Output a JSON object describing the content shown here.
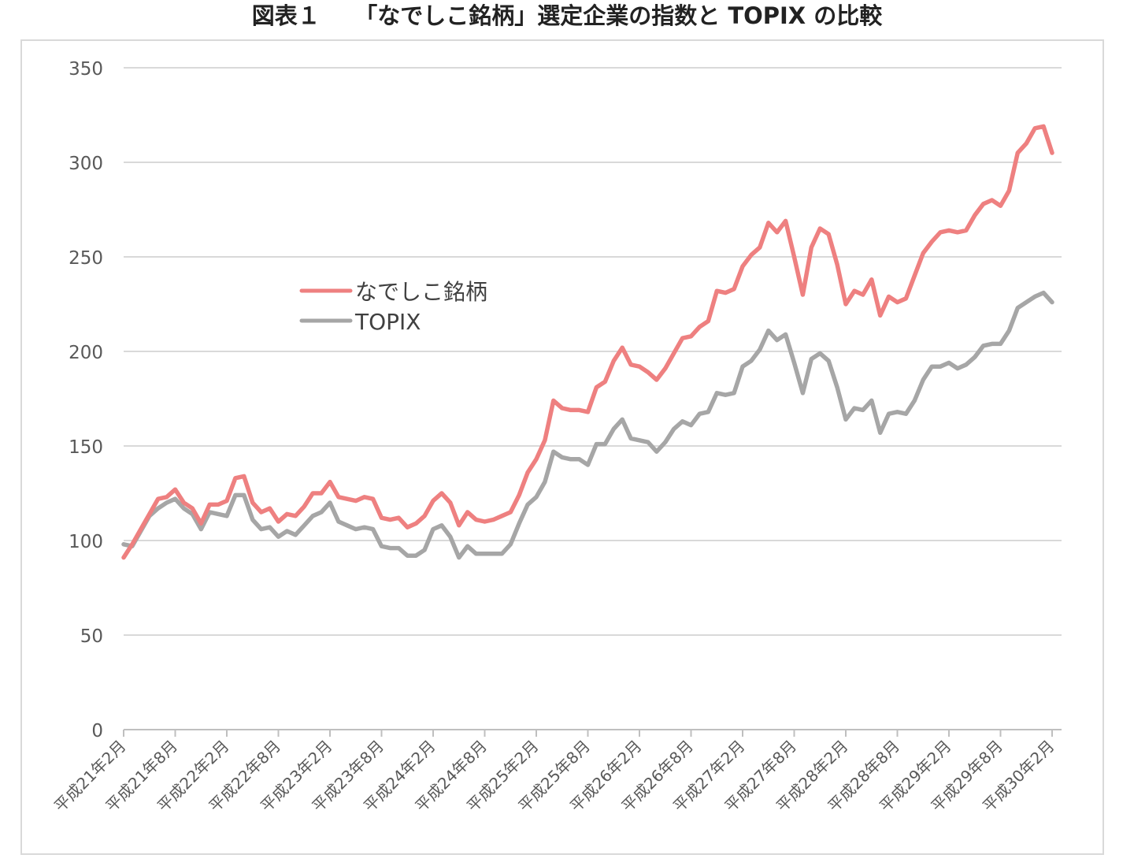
{
  "title": "図表１　　「なでしこ銘柄」選定企業の指数と TOPIX の比較",
  "colors": {
    "nadeshiko": "#ee8080",
    "topix": "#a6a6a6",
    "grid": "#d9d9d9",
    "axis": "#bfbfbf"
  },
  "chart_data": {
    "type": "line",
    "title": "図表１　　「なでしこ銘柄」選定企業の指数と TOPIX の比較",
    "xlabel": "",
    "ylabel": "",
    "ylim": [
      0,
      350
    ],
    "yticks": [
      0,
      50,
      100,
      150,
      200,
      250,
      300,
      350
    ],
    "grid": true,
    "legend_position": "upper-left-center",
    "x_tick_labels": [
      "平成21年2月",
      "平成21年8月",
      "平成22年2月",
      "平成22年8月",
      "平成23年2月",
      "平成23年8月",
      "平成24年2月",
      "平成24年8月",
      "平成25年2月",
      "平成25年8月",
      "平成26年2月",
      "平成26年8月",
      "平成27年2月",
      "平成27年8月",
      "平成28年2月",
      "平成28年8月",
      "平成29年2月",
      "平成29年8月",
      "平成30年2月"
    ],
    "x_start": "平成21年2月",
    "x_interval": "monthly",
    "series": [
      {
        "name": "なでしこ銘柄",
        "color": "#ee8080",
        "values": [
          91,
          98,
          106,
          114,
          122,
          123,
          127,
          120,
          117,
          109,
          119,
          119,
          121,
          133,
          134,
          120,
          115,
          117,
          110,
          114,
          113,
          118,
          125,
          125,
          131,
          123,
          122,
          121,
          123,
          122,
          112,
          111,
          112,
          107,
          109,
          113,
          121,
          125,
          120,
          108,
          115,
          111,
          110,
          111,
          113,
          115,
          124,
          136,
          143,
          153,
          174,
          170,
          169,
          169,
          168,
          181,
          184,
          195,
          202,
          193,
          192,
          189,
          185,
          191,
          199,
          207,
          208,
          213,
          216,
          232,
          231,
          233,
          245,
          251,
          255,
          268,
          263,
          269,
          250,
          230,
          255,
          265,
          262,
          246,
          225,
          232,
          230,
          238,
          219,
          229,
          226,
          228,
          240,
          252,
          258,
          263,
          264,
          263,
          264,
          272,
          278,
          280,
          277,
          285,
          305,
          310,
          318,
          319,
          305
        ]
      },
      {
        "name": "TOPIX",
        "color": "#a6a6a6",
        "values": [
          98,
          97,
          105,
          113,
          117,
          120,
          122,
          117,
          114,
          106,
          115,
          114,
          113,
          124,
          124,
          111,
          106,
          107,
          102,
          105,
          103,
          108,
          113,
          115,
          120,
          110,
          108,
          106,
          107,
          106,
          97,
          96,
          96,
          92,
          92,
          95,
          106,
          108,
          102,
          91,
          97,
          93,
          93,
          93,
          93,
          98,
          109,
          119,
          123,
          131,
          147,
          144,
          143,
          143,
          140,
          151,
          151,
          159,
          164,
          154,
          153,
          152,
          147,
          152,
          159,
          163,
          161,
          167,
          168,
          178,
          177,
          178,
          192,
          195,
          201,
          211,
          206,
          209,
          194,
          178,
          196,
          199,
          195,
          181,
          164,
          170,
          169,
          174,
          157,
          167,
          168,
          167,
          174,
          185,
          192,
          192,
          194,
          191,
          193,
          197,
          203,
          204,
          204,
          211,
          223,
          226,
          229,
          231,
          226
        ]
      }
    ]
  }
}
